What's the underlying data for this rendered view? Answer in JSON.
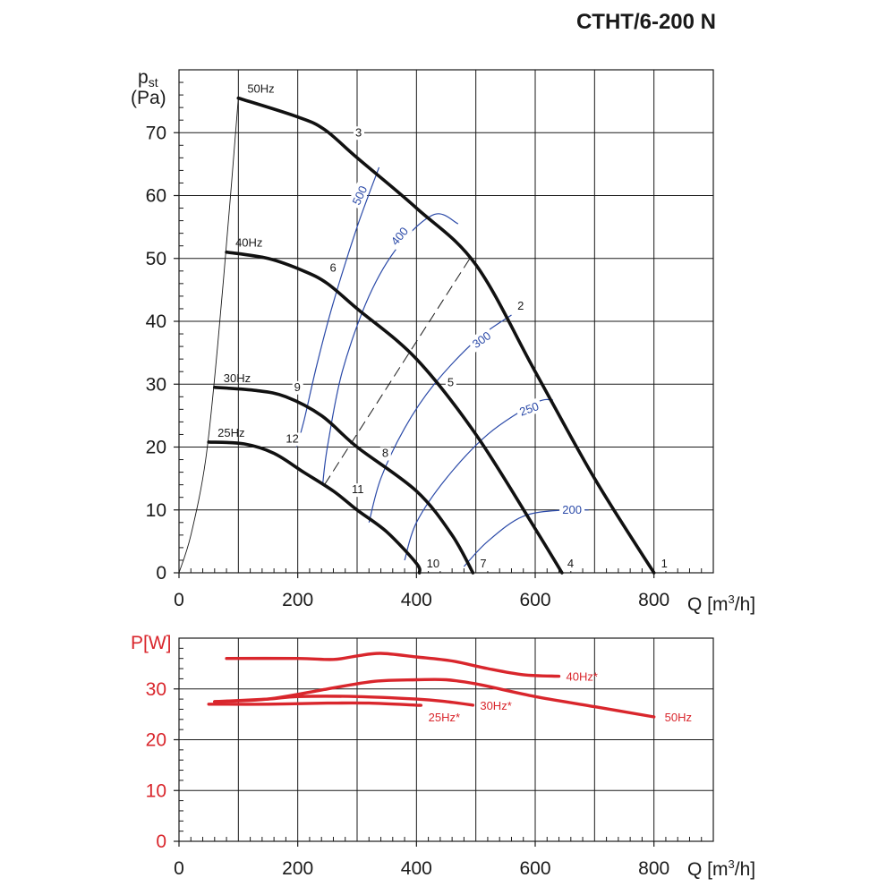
{
  "title": "CTHT/6-200 N",
  "chart_data": [
    {
      "type": "line",
      "ylabel_main": "p",
      "ylabel_sub": "st",
      "ylabel_unit": "(Pa)",
      "xlabel_main": "Q [m",
      "xlabel_sup": "3",
      "xlabel_tail": "/h]",
      "xlim": [
        0,
        900
      ],
      "ylim": [
        0,
        80
      ],
      "x_ticks": [
        "0",
        "200",
        "400",
        "600",
        "800"
      ],
      "y_ticks": [
        "0",
        "10",
        "20",
        "30",
        "40",
        "50",
        "60",
        "70"
      ],
      "grid": true,
      "series": [
        {
          "name": "50Hz",
          "points": [
            [
              100,
              75.5
            ],
            [
              200,
              72.5
            ],
            [
              245,
              70.5
            ],
            [
              300,
              66
            ],
            [
              400,
              58
            ],
            [
              500,
              49
            ],
            [
              600,
              32
            ],
            [
              700,
              15
            ],
            [
              800,
              0
            ]
          ]
        },
        {
          "name": "40Hz",
          "points": [
            [
              80,
              51
            ],
            [
              150,
              50
            ],
            [
              210,
              48
            ],
            [
              250,
              46
            ],
            [
              300,
              42
            ],
            [
              400,
              34
            ],
            [
              500,
              22
            ],
            [
              600,
              7
            ],
            [
              645,
              0
            ]
          ]
        },
        {
          "name": "30Hz",
          "points": [
            [
              60,
              29.5
            ],
            [
              130,
              29
            ],
            [
              180,
              28
            ],
            [
              240,
              25
            ],
            [
              300,
              20
            ],
            [
              400,
              13
            ],
            [
              460,
              6
            ],
            [
              495,
              0
            ]
          ]
        },
        {
          "name": "25Hz",
          "points": [
            [
              50,
              20.8
            ],
            [
              110,
              20.5
            ],
            [
              160,
              19
            ],
            [
              210,
              16
            ],
            [
              260,
              13
            ],
            [
              300,
              10
            ],
            [
              350,
              6.5
            ],
            [
              400,
              1.5
            ],
            [
              405,
              0
            ]
          ]
        }
      ],
      "system_curves": [
        {
          "label": "500",
          "points": [
            [
              198,
              20
            ],
            [
              210,
              24
            ],
            [
              232,
              33
            ],
            [
              260,
              43
            ],
            [
              300,
              55
            ],
            [
              337,
              64.5
            ]
          ]
        },
        {
          "label": "400",
          "points": [
            [
              242,
              14
            ],
            [
              250,
              20
            ],
            [
              275,
              32
            ],
            [
              320,
              44
            ],
            [
              370,
              52
            ],
            [
              430,
              57
            ],
            [
              470,
              55.5
            ]
          ]
        },
        {
          "label": "300",
          "points": [
            [
              320,
              8
            ],
            [
              340,
              15
            ],
            [
              380,
              23
            ],
            [
              430,
              30
            ],
            [
              500,
              37
            ],
            [
              560,
              41
            ]
          ]
        },
        {
          "label": "250",
          "points": [
            [
              380,
              2
            ],
            [
              400,
              8
            ],
            [
              450,
              15
            ],
            [
              520,
              22
            ],
            [
              600,
              27
            ],
            [
              630,
              27.5
            ]
          ]
        },
        {
          "label": "200",
          "points": [
            [
              480,
              1
            ],
            [
              520,
              5
            ],
            [
              580,
              9
            ],
            [
              650,
              10
            ],
            [
              690,
              10
            ]
          ]
        }
      ],
      "dashed_line": [
        [
          245,
          14
        ],
        [
          490,
          50
        ]
      ],
      "surge_line": [
        [
          0,
          0
        ],
        [
          20,
          6
        ],
        [
          45,
          18
        ],
        [
          65,
          36
        ],
        [
          85,
          58
        ],
        [
          100,
          75.5
        ]
      ],
      "points": [
        {
          "label": "1",
          "x": 800,
          "y": 0
        },
        {
          "label": "2",
          "x": 555,
          "y": 41
        },
        {
          "label": "3",
          "x": 300,
          "y": 70
        },
        {
          "label": "4",
          "x": 645,
          "y": 0
        },
        {
          "label": "5",
          "x": 440,
          "y": 30
        },
        {
          "label": "6",
          "x": 260,
          "y": 48.5
        },
        {
          "label": "7",
          "x": 495,
          "y": 0
        },
        {
          "label": "8",
          "x": 345,
          "y": 19
        },
        {
          "label": "9",
          "x": 200,
          "y": 29.5
        },
        {
          "label": "10",
          "x": 405,
          "y": 0
        },
        {
          "label": "11",
          "x": 300,
          "y": 13.5
        },
        {
          "label": "12",
          "x": 195,
          "y": 21
        }
      ],
      "blue_labels": [
        "500",
        "400",
        "300",
        "250",
        "200"
      ]
    },
    {
      "type": "line",
      "ylabel": "P[W]",
      "xlabel_main": "Q [m",
      "xlabel_sup": "3",
      "xlabel_tail": "/h]",
      "xlim": [
        0,
        900
      ],
      "ylim": [
        0,
        40
      ],
      "x_ticks": [
        "0",
        "200",
        "400",
        "600",
        "800"
      ],
      "y_ticks": [
        "0",
        "10",
        "20",
        "30"
      ],
      "grid": true,
      "color": "#d9262c",
      "series": [
        {
          "name": "40Hz*",
          "points": [
            [
              80,
              36
            ],
            [
              200,
              36
            ],
            [
              260,
              35.8
            ],
            [
              300,
              36.5
            ],
            [
              340,
              37
            ],
            [
              400,
              36.3
            ],
            [
              460,
              35.5
            ],
            [
              520,
              34
            ],
            [
              580,
              32.8
            ],
            [
              640,
              32.5
            ]
          ]
        },
        {
          "name": "50Hz",
          "points": [
            [
              60,
              27.5
            ],
            [
              150,
              28
            ],
            [
              250,
              30
            ],
            [
              330,
              31.5
            ],
            [
              400,
              31.8
            ],
            [
              450,
              31.8
            ],
            [
              500,
              31
            ],
            [
              600,
              28.5
            ],
            [
              700,
              26.5
            ],
            [
              800,
              24.5
            ]
          ]
        },
        {
          "name": "30Hz*",
          "points": [
            [
              60,
              27.5
            ],
            [
              150,
              28
            ],
            [
              200,
              28.5
            ],
            [
              300,
              28.5
            ],
            [
              400,
              28
            ],
            [
              450,
              27.5
            ],
            [
              495,
              26.8
            ]
          ]
        },
        {
          "name": "25Hz*",
          "points": [
            [
              50,
              27
            ],
            [
              150,
              27
            ],
            [
              250,
              27.2
            ],
            [
              320,
              27.2
            ],
            [
              400,
              26.8
            ],
            [
              405,
              26.8
            ]
          ]
        }
      ]
    }
  ]
}
